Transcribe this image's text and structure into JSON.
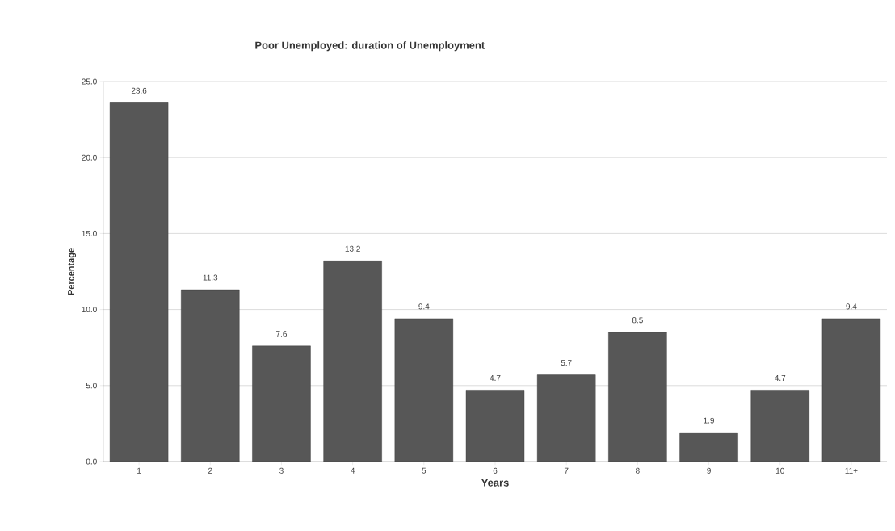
{
  "chart_data": {
    "type": "bar",
    "title": "Poor Unemployed: duration of Unemployment",
    "xlabel": "Years",
    "ylabel": "Percentage",
    "categories": [
      "1",
      "2",
      "3",
      "4",
      "5",
      "6",
      "7",
      "8",
      "9",
      "10",
      "11+"
    ],
    "values": [
      23.6,
      11.3,
      7.6,
      13.2,
      9.4,
      4.7,
      5.7,
      8.5,
      1.9,
      4.7,
      9.4
    ],
    "color": "#575757",
    "ylim": [
      0,
      25
    ],
    "yticks": [
      {
        "value": 0,
        "label": "0.0"
      },
      {
        "value": 5,
        "label": "5.0"
      },
      {
        "value": 10,
        "label": "10.0"
      },
      {
        "value": 15,
        "label": "15.0"
      },
      {
        "value": 20,
        "label": "20.0"
      },
      {
        "value": 25,
        "label": "25.0"
      }
    ],
    "grid": "y",
    "data_labels": true
  }
}
